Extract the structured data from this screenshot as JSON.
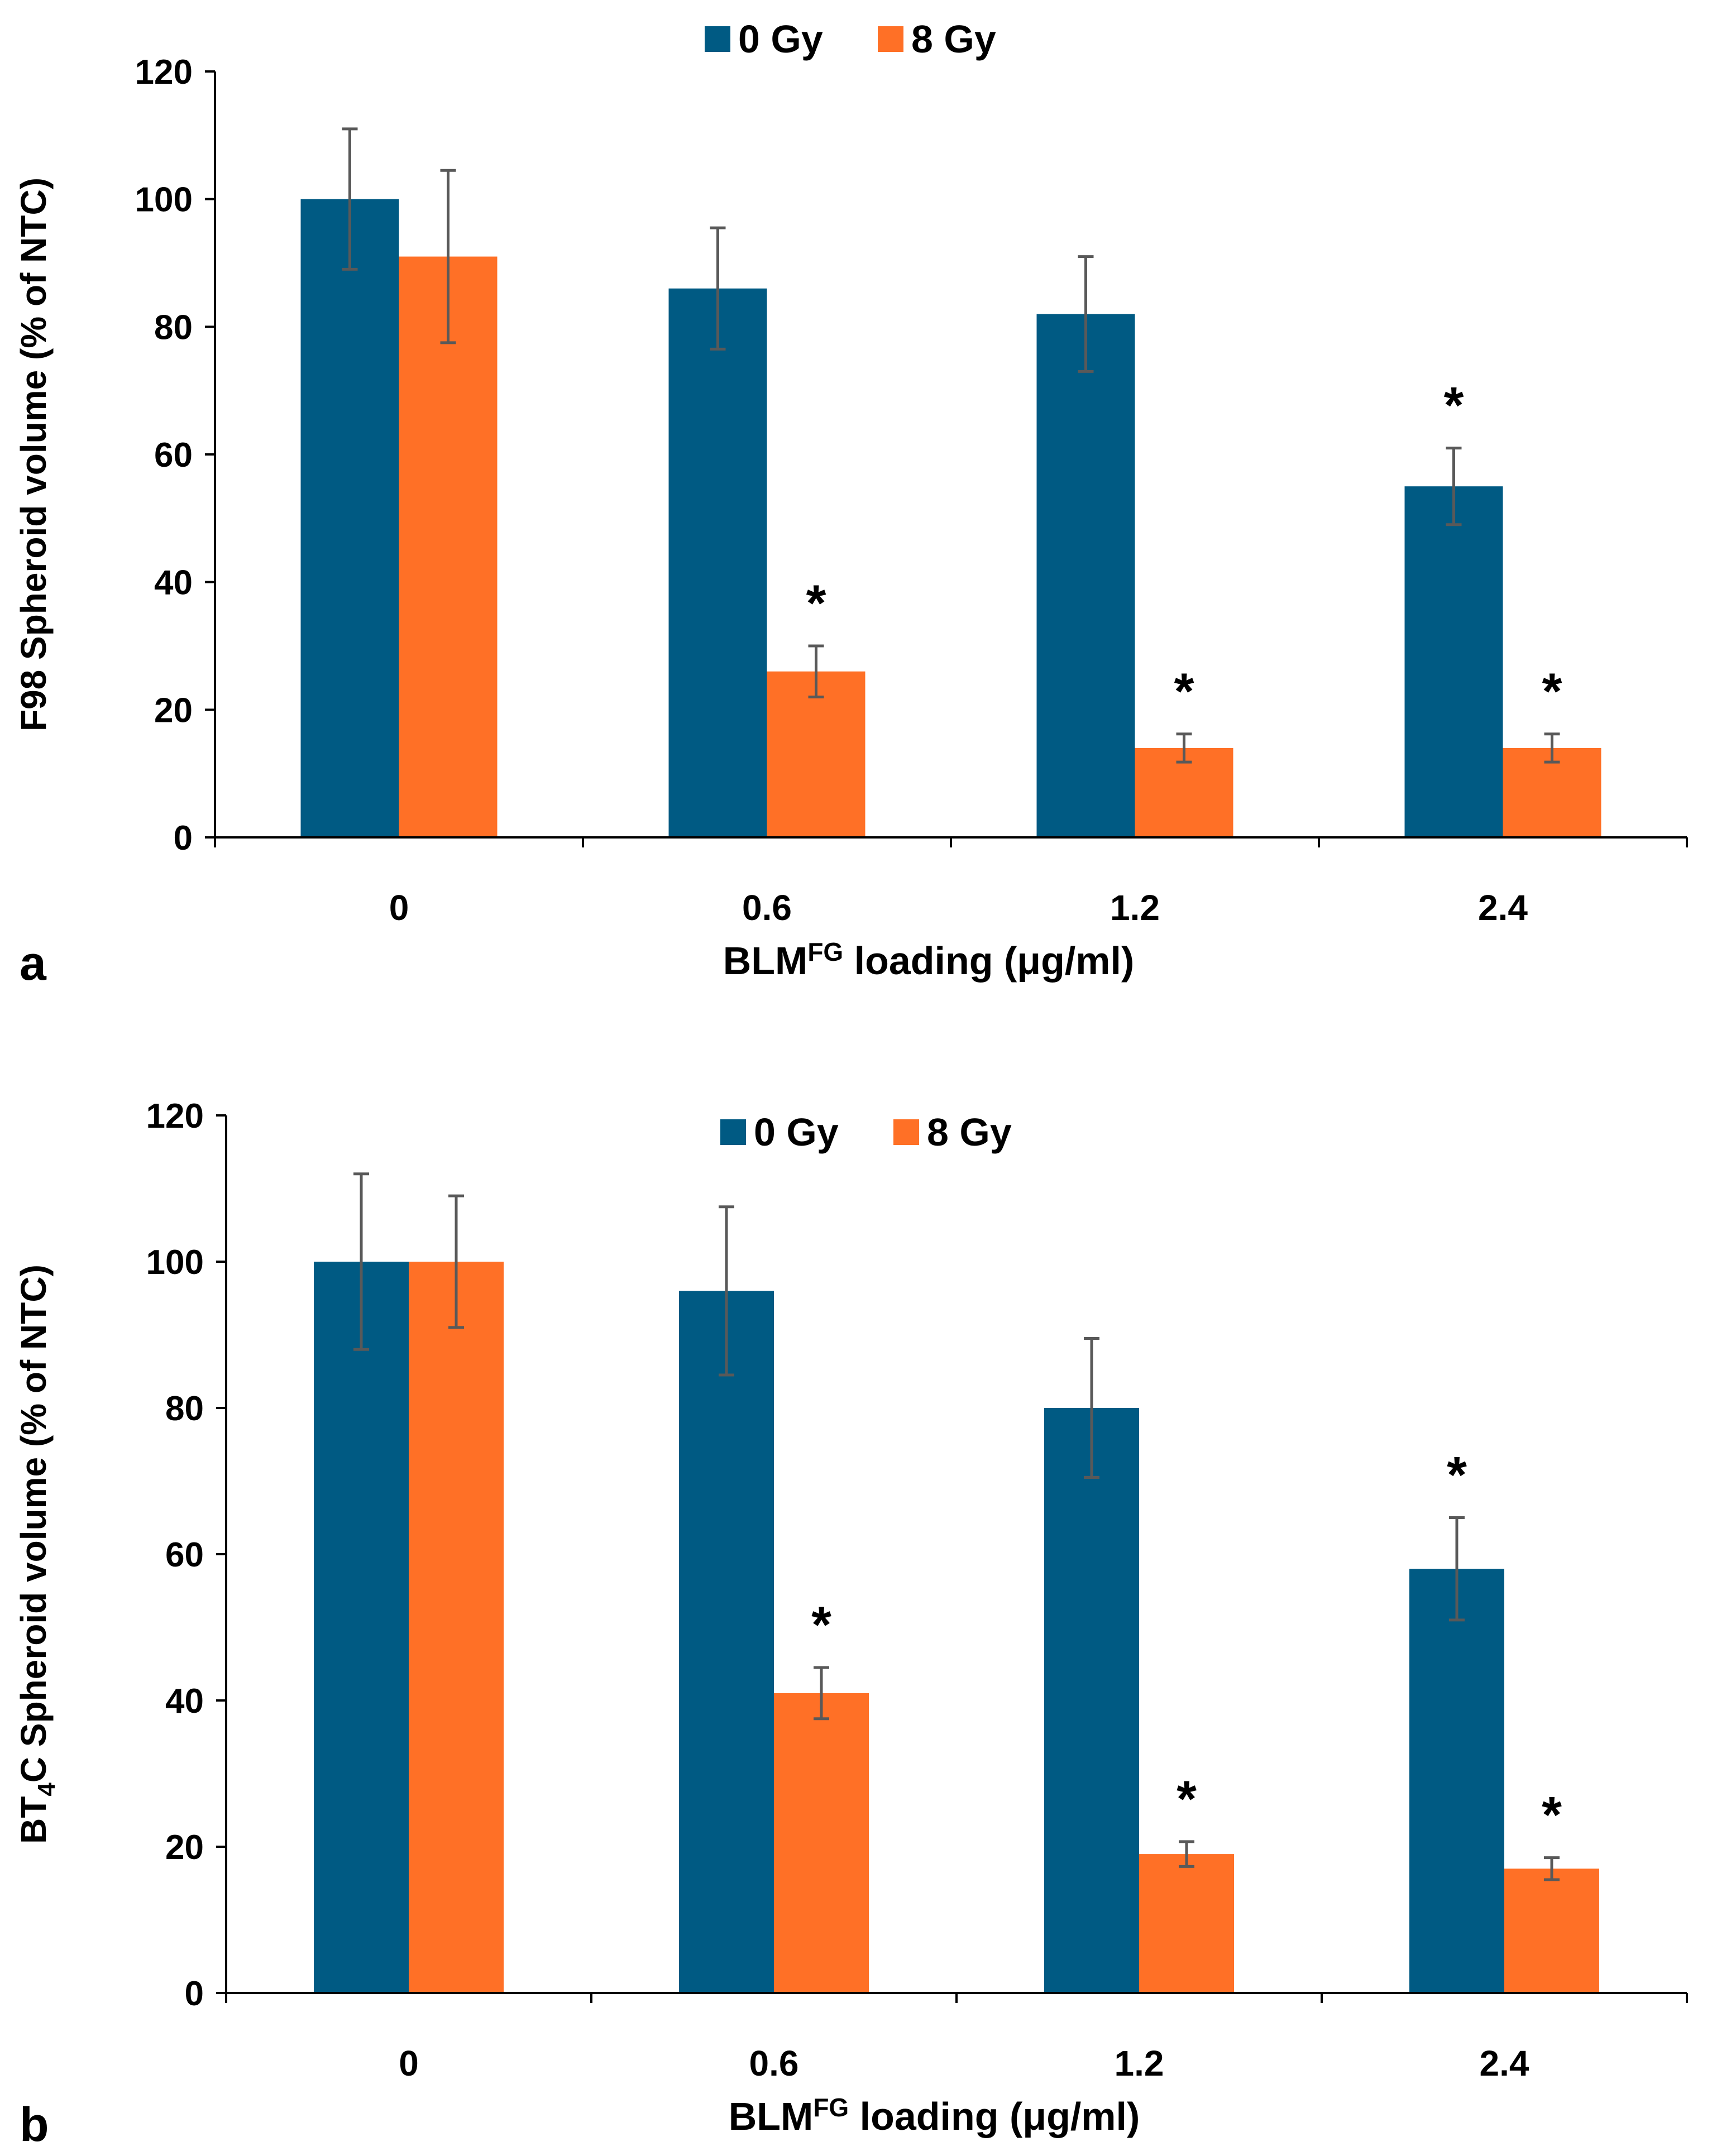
{
  "colors": {
    "series_0": "#005A83",
    "series_1": "#FF7026",
    "axis": "#000000",
    "error_bar": "#595959"
  },
  "chart_data": [
    {
      "type": "bar",
      "panel_label": "a",
      "categories": [
        "0",
        "0.6",
        "1.2",
        "2.4"
      ],
      "xlabel": "BLMFG loading (μg/ml)",
      "xlabel_parts": {
        "main": "BLM",
        "sup": "FG",
        "rest": " loading (μg/ml)"
      },
      "ylabel": "F98 Spheroid volume  (% of NTC)",
      "ylabel_parts": {
        "main": "F98 Spheroid volume  (% of NTC)",
        "sub": "",
        "rest": ""
      },
      "ylim": [
        0,
        120
      ],
      "yticks": [
        "0",
        "20",
        "40",
        "60",
        "80",
        "100",
        "120"
      ],
      "legend_position": "top-center",
      "series": [
        {
          "name": "0 Gy",
          "values": [
            100,
            86,
            82,
            55
          ],
          "errors": [
            11,
            9.5,
            9,
            6
          ],
          "significant": [
            false,
            false,
            false,
            true
          ]
        },
        {
          "name": "8 Gy",
          "values": [
            91,
            26,
            14,
            14
          ],
          "errors": [
            13.5,
            4,
            2.2,
            2.2
          ],
          "significant": [
            false,
            true,
            true,
            true
          ]
        }
      ],
      "significance_marker": "*"
    },
    {
      "type": "bar",
      "panel_label": "b",
      "categories": [
        "0",
        "0.6",
        "1.2",
        "2.4"
      ],
      "xlabel": "BLMFG loading (μg/ml)",
      "xlabel_parts": {
        "main": "BLM",
        "sup": "FG",
        "rest": " loading (μg/ml)"
      },
      "ylabel": "BT4C Spheroid volume (% of NTC)",
      "ylabel_parts": {
        "main": "BT",
        "sub": "4",
        "rest": "C Spheroid volume (% of NTC)"
      },
      "ylim": [
        0,
        120
      ],
      "yticks": [
        "0",
        "20",
        "40",
        "60",
        "80",
        "100",
        "120"
      ],
      "legend_position": "top-center",
      "series": [
        {
          "name": "0 Gy",
          "values": [
            100,
            96,
            80,
            58
          ],
          "errors": [
            12,
            11.5,
            9.5,
            7
          ],
          "significant": [
            false,
            false,
            false,
            true
          ]
        },
        {
          "name": "8 Gy",
          "values": [
            100,
            41,
            19,
            17
          ],
          "errors": [
            9,
            3.5,
            1.7,
            1.5
          ],
          "significant": [
            false,
            true,
            true,
            true
          ]
        }
      ],
      "significance_marker": "*"
    }
  ]
}
